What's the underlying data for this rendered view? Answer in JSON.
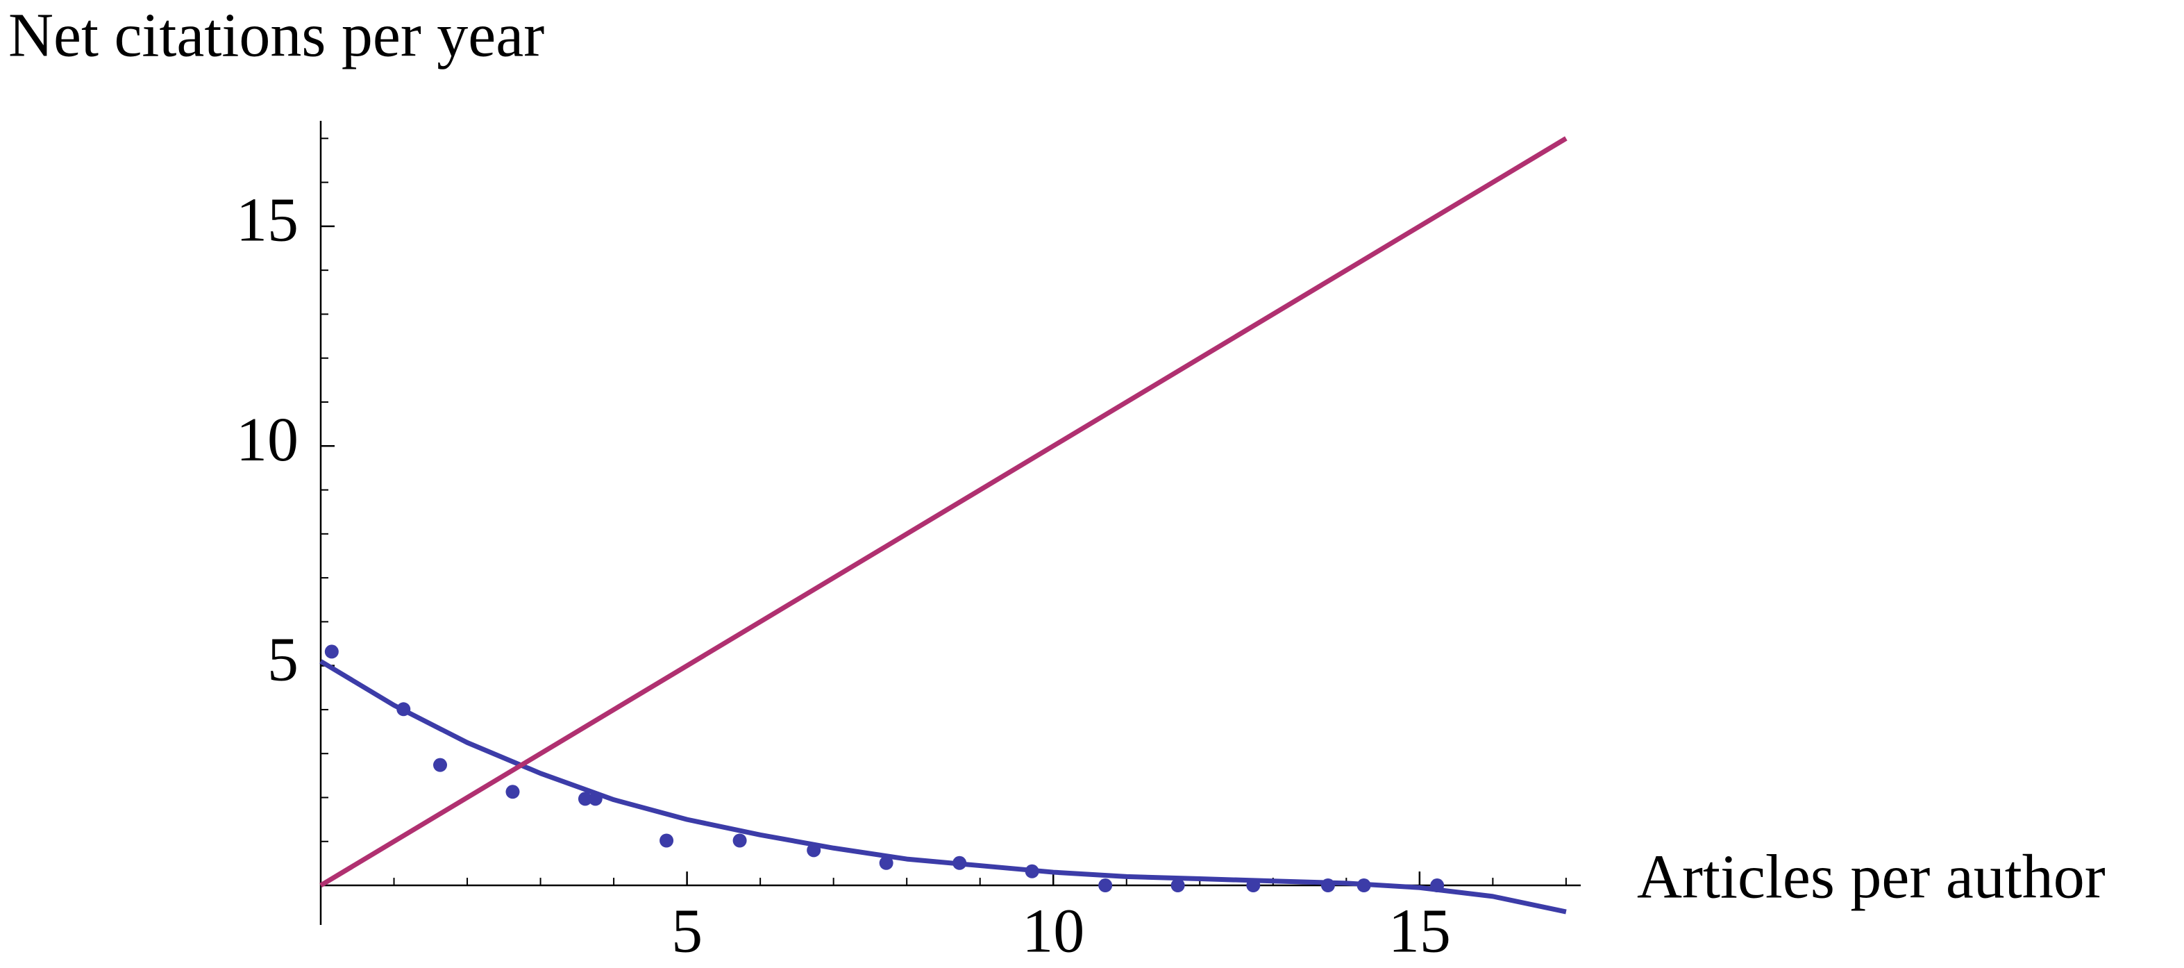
{
  "chart_data": {
    "type": "scatter",
    "title": "Net citations per year",
    "x_label": "Articles per author",
    "xlim": [
      0,
      17.2
    ],
    "ylim": [
      -0.9,
      17.4
    ],
    "xticks": [
      5,
      10,
      15
    ],
    "yticks": [
      5,
      10,
      15
    ],
    "minor_xticks": [
      1,
      2,
      3,
      4,
      6,
      7,
      8,
      9,
      11,
      12,
      13,
      14,
      16,
      17
    ],
    "minor_yticks": [
      1,
      2,
      3,
      4,
      6,
      7,
      8,
      9,
      11,
      12,
      13,
      14,
      16,
      17
    ],
    "series": [
      {
        "kind": "points",
        "color": "#3c3ca8",
        "x": [
          0.15,
          1.13,
          1.63,
          2.62,
          3.61,
          3.75,
          4.72,
          5.72,
          6.73,
          7.72,
          8.72,
          9.71,
          10.71,
          11.7,
          12.73,
          13.75,
          14.24,
          15.24
        ],
        "values": [
          5.32,
          4.01,
          2.74,
          2.13,
          1.97,
          1.97,
          1.02,
          1.02,
          0.8,
          0.51,
          0.51,
          0.32,
          0,
          0,
          0,
          0,
          0,
          0
        ]
      },
      {
        "kind": "line",
        "color": "#3c3ca8",
        "x": [
          0,
          1,
          2,
          3,
          4,
          5,
          6,
          7,
          8,
          9,
          10,
          11,
          12,
          13,
          14,
          15,
          16,
          17
        ],
        "values": [
          5.1,
          4.1,
          3.25,
          2.55,
          1.95,
          1.5,
          1.15,
          0.85,
          0.6,
          0.45,
          0.3,
          0.2,
          0.15,
          0.1,
          0.05,
          -0.05,
          -0.25,
          -0.6
        ]
      },
      {
        "kind": "line",
        "color": "#b03070",
        "x": [
          0,
          17
        ],
        "values": [
          0,
          17
        ]
      }
    ]
  }
}
